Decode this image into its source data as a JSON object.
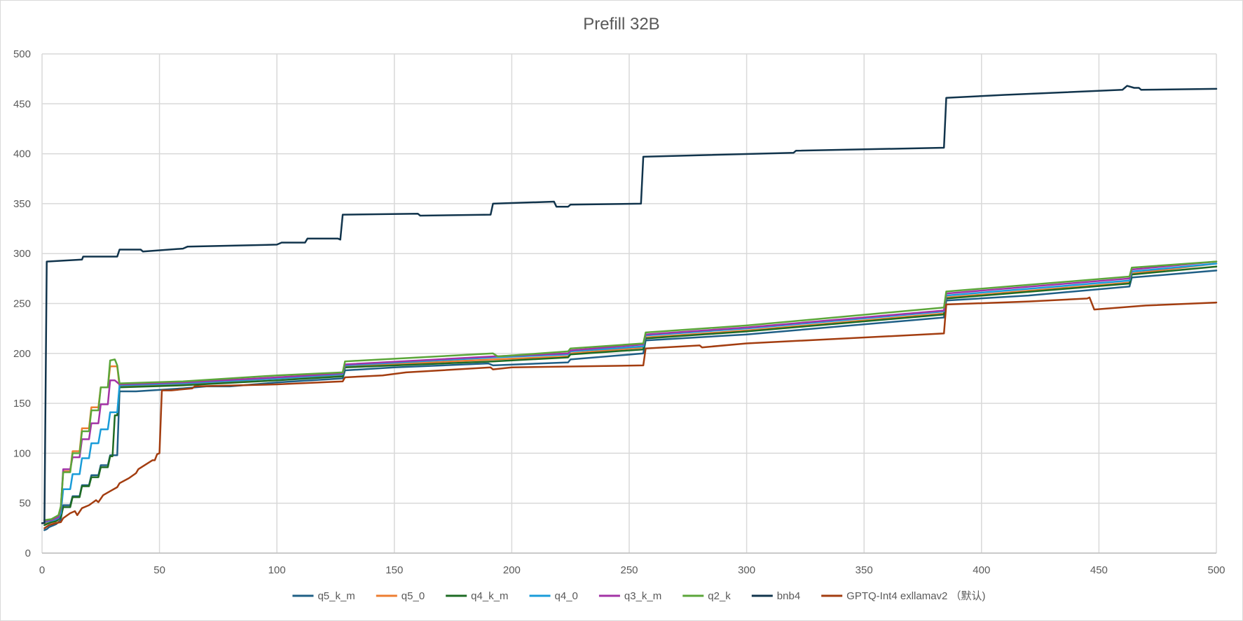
{
  "chart_data": {
    "type": "line",
    "title": "Prefill 32B",
    "xlabel": "",
    "ylabel": "",
    "xlim": [
      0,
      500
    ],
    "ylim": [
      0,
      500
    ],
    "xticks": [
      0,
      50,
      100,
      150,
      200,
      250,
      300,
      350,
      400,
      450,
      500
    ],
    "yticks": [
      0,
      50,
      100,
      150,
      200,
      250,
      300,
      350,
      400,
      450,
      500
    ],
    "grid": true,
    "legend_position": "bottom",
    "series": [
      {
        "name": "q5_k_m",
        "color": "#1f5f86",
        "points": [
          [
            1,
            23
          ],
          [
            2,
            24
          ],
          [
            3,
            26
          ],
          [
            4,
            27
          ],
          [
            5,
            28
          ],
          [
            6,
            29
          ],
          [
            7,
            31
          ],
          [
            8,
            34
          ],
          [
            9,
            48
          ],
          [
            12,
            48
          ],
          [
            13,
            57
          ],
          [
            16,
            57
          ],
          [
            17,
            68
          ],
          [
            20,
            68
          ],
          [
            21,
            78
          ],
          [
            24,
            78
          ],
          [
            25,
            88
          ],
          [
            28,
            88
          ],
          [
            29,
            98
          ],
          [
            32,
            98
          ],
          [
            33,
            162
          ],
          [
            40,
            162
          ],
          [
            60,
            165
          ],
          [
            70,
            167
          ],
          [
            80,
            167
          ],
          [
            100,
            171
          ],
          [
            128,
            175
          ],
          [
            129,
            183
          ],
          [
            150,
            186
          ],
          [
            190,
            190
          ],
          [
            192,
            188
          ],
          [
            224,
            191
          ],
          [
            225,
            194
          ],
          [
            256,
            200
          ],
          [
            257,
            213
          ],
          [
            300,
            219
          ],
          [
            384,
            236
          ],
          [
            385,
            253
          ],
          [
            420,
            258
          ],
          [
            463,
            267
          ],
          [
            464,
            276
          ],
          [
            500,
            283
          ]
        ]
      },
      {
        "name": "q5_0",
        "color": "#ed7d31",
        "points": [
          [
            1,
            30
          ],
          [
            3,
            30
          ],
          [
            5,
            31
          ],
          [
            7,
            33
          ],
          [
            8,
            43
          ],
          [
            9,
            82
          ],
          [
            12,
            82
          ],
          [
            13,
            102
          ],
          [
            16,
            102
          ],
          [
            17,
            125
          ],
          [
            20,
            125
          ],
          [
            21,
            146
          ],
          [
            24,
            146
          ],
          [
            25,
            166
          ],
          [
            28,
            166
          ],
          [
            29,
            187
          ],
          [
            32,
            187
          ],
          [
            33,
            167
          ],
          [
            60,
            169
          ],
          [
            100,
            175
          ],
          [
            128,
            178
          ],
          [
            129,
            187
          ],
          [
            192,
            194
          ],
          [
            224,
            197
          ],
          [
            225,
            200
          ],
          [
            256,
            206
          ],
          [
            257,
            216
          ],
          [
            300,
            223
          ],
          [
            384,
            240
          ],
          [
            385,
            256
          ],
          [
            463,
            271
          ],
          [
            464,
            280
          ],
          [
            500,
            290
          ]
        ]
      },
      {
        "name": "q4_k_m",
        "color": "#1e6b24",
        "points": [
          [
            1,
            28
          ],
          [
            2,
            29
          ],
          [
            4,
            31
          ],
          [
            6,
            32
          ],
          [
            7,
            34
          ],
          [
            8,
            36
          ],
          [
            9,
            46
          ],
          [
            12,
            46
          ],
          [
            13,
            56
          ],
          [
            16,
            56
          ],
          [
            17,
            67
          ],
          [
            20,
            67
          ],
          [
            21,
            76
          ],
          [
            24,
            76
          ],
          [
            25,
            86
          ],
          [
            28,
            86
          ],
          [
            29,
            97
          ],
          [
            30,
            97
          ],
          [
            31,
            138
          ],
          [
            32,
            138
          ],
          [
            33,
            166
          ],
          [
            60,
            168
          ],
          [
            100,
            173
          ],
          [
            128,
            177
          ],
          [
            129,
            186
          ],
          [
            192,
            192
          ],
          [
            224,
            196
          ],
          [
            225,
            199
          ],
          [
            256,
            204
          ],
          [
            257,
            215
          ],
          [
            300,
            222
          ],
          [
            384,
            239
          ],
          [
            385,
            255
          ],
          [
            463,
            270
          ],
          [
            464,
            279
          ],
          [
            500,
            287
          ]
        ]
      },
      {
        "name": "q4_0",
        "color": "#1a9cd9",
        "points": [
          [
            1,
            31
          ],
          [
            3,
            32
          ],
          [
            5,
            33
          ],
          [
            7,
            35
          ],
          [
            8,
            40
          ],
          [
            9,
            64
          ],
          [
            12,
            64
          ],
          [
            13,
            79
          ],
          [
            16,
            79
          ],
          [
            17,
            95
          ],
          [
            20,
            95
          ],
          [
            21,
            110
          ],
          [
            24,
            110
          ],
          [
            25,
            124
          ],
          [
            28,
            124
          ],
          [
            29,
            141
          ],
          [
            32,
            141
          ],
          [
            33,
            168
          ],
          [
            60,
            170
          ],
          [
            100,
            175
          ],
          [
            128,
            179
          ],
          [
            129,
            188
          ],
          [
            192,
            196
          ],
          [
            224,
            199
          ],
          [
            225,
            202
          ],
          [
            256,
            207
          ],
          [
            257,
            218
          ],
          [
            300,
            225
          ],
          [
            384,
            242
          ],
          [
            385,
            258
          ],
          [
            463,
            273
          ],
          [
            464,
            282
          ],
          [
            500,
            290
          ]
        ]
      },
      {
        "name": "q3_k_m",
        "color": "#a333a6",
        "points": [
          [
            1,
            32
          ],
          [
            4,
            33
          ],
          [
            7,
            36
          ],
          [
            8,
            45
          ],
          [
            9,
            84
          ],
          [
            12,
            84
          ],
          [
            13,
            96
          ],
          [
            16,
            96
          ],
          [
            17,
            114
          ],
          [
            20,
            114
          ],
          [
            21,
            130
          ],
          [
            24,
            130
          ],
          [
            25,
            149
          ],
          [
            28,
            149
          ],
          [
            29,
            173
          ],
          [
            31,
            173
          ],
          [
            32,
            171
          ],
          [
            33,
            169
          ],
          [
            60,
            171
          ],
          [
            100,
            176
          ],
          [
            128,
            180
          ],
          [
            129,
            189
          ],
          [
            192,
            197
          ],
          [
            224,
            200
          ],
          [
            225,
            203
          ],
          [
            256,
            209
          ],
          [
            257,
            219
          ],
          [
            300,
            226
          ],
          [
            384,
            243
          ],
          [
            385,
            260
          ],
          [
            463,
            275
          ],
          [
            464,
            284
          ],
          [
            500,
            292
          ]
        ]
      },
      {
        "name": "q2_k",
        "color": "#5ba63a",
        "points": [
          [
            1,
            33
          ],
          [
            4,
            34
          ],
          [
            7,
            38
          ],
          [
            8,
            47
          ],
          [
            9,
            81
          ],
          [
            12,
            81
          ],
          [
            13,
            100
          ],
          [
            16,
            100
          ],
          [
            17,
            122
          ],
          [
            20,
            122
          ],
          [
            21,
            143
          ],
          [
            24,
            143
          ],
          [
            25,
            166
          ],
          [
            28,
            166
          ],
          [
            29,
            193
          ],
          [
            31,
            194
          ],
          [
            32,
            188
          ],
          [
            33,
            170
          ],
          [
            60,
            172
          ],
          [
            100,
            178
          ],
          [
            128,
            181
          ],
          [
            129,
            192
          ],
          [
            192,
            200
          ],
          [
            194,
            197
          ],
          [
            224,
            202
          ],
          [
            225,
            205
          ],
          [
            256,
            210
          ],
          [
            257,
            221
          ],
          [
            300,
            228
          ],
          [
            384,
            246
          ],
          [
            385,
            262
          ],
          [
            463,
            277
          ],
          [
            464,
            286
          ],
          [
            500,
            292
          ]
        ]
      },
      {
        "name": "bnb4",
        "color": "#11344c",
        "points": [
          [
            0,
            30
          ],
          [
            1,
            30
          ],
          [
            2,
            292
          ],
          [
            17,
            294
          ],
          [
            17.5,
            297
          ],
          [
            32,
            297
          ],
          [
            33,
            304
          ],
          [
            42,
            304
          ],
          [
            43,
            302
          ],
          [
            60,
            305
          ],
          [
            62,
            307
          ],
          [
            100,
            309
          ],
          [
            102,
            311
          ],
          [
            112,
            311
          ],
          [
            113,
            315
          ],
          [
            126,
            315
          ],
          [
            127,
            314
          ],
          [
            128,
            339
          ],
          [
            160,
            340
          ],
          [
            161,
            338
          ],
          [
            191,
            339
          ],
          [
            192,
            350
          ],
          [
            218,
            352
          ],
          [
            219,
            347
          ],
          [
            224,
            347
          ],
          [
            225,
            349
          ],
          [
            255,
            350
          ],
          [
            256,
            397
          ],
          [
            320,
            401
          ],
          [
            321,
            403
          ],
          [
            384,
            406
          ],
          [
            385,
            456
          ],
          [
            410,
            459
          ],
          [
            460,
            464
          ],
          [
            462,
            468
          ],
          [
            465,
            466
          ],
          [
            467,
            466
          ],
          [
            468,
            464
          ],
          [
            500,
            465
          ]
        ]
      },
      {
        "name": "GPTQ-Int4 exllamav2 （默认)",
        "color": "#a33d10",
        "points": [
          [
            1,
            25
          ],
          [
            3,
            28
          ],
          [
            6,
            30
          ],
          [
            8,
            31
          ],
          [
            9,
            35
          ],
          [
            12,
            40
          ],
          [
            14,
            42
          ],
          [
            15,
            38
          ],
          [
            17,
            45
          ],
          [
            20,
            48
          ],
          [
            23,
            53
          ],
          [
            24,
            51
          ],
          [
            26,
            58
          ],
          [
            29,
            62
          ],
          [
            32,
            66
          ],
          [
            33,
            70
          ],
          [
            37,
            75
          ],
          [
            40,
            80
          ],
          [
            41,
            84
          ],
          [
            45,
            90
          ],
          [
            47,
            93
          ],
          [
            48,
            93
          ],
          [
            49,
            99
          ],
          [
            50,
            100
          ],
          [
            51,
            163
          ],
          [
            55,
            163
          ],
          [
            64,
            165
          ],
          [
            65,
            167
          ],
          [
            100,
            169
          ],
          [
            128,
            172
          ],
          [
            129,
            176
          ],
          [
            145,
            178
          ],
          [
            155,
            181
          ],
          [
            191,
            186
          ],
          [
            192,
            184
          ],
          [
            200,
            186
          ],
          [
            256,
            188
          ],
          [
            257,
            205
          ],
          [
            280,
            208
          ],
          [
            281,
            206
          ],
          [
            300,
            210
          ],
          [
            384,
            220
          ],
          [
            385,
            249
          ],
          [
            420,
            252
          ],
          [
            445,
            255
          ],
          [
            446,
            256
          ],
          [
            448,
            244
          ],
          [
            470,
            248
          ],
          [
            500,
            251
          ]
        ]
      }
    ]
  }
}
